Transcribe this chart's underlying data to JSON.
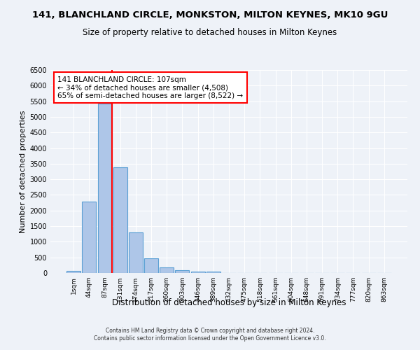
{
  "title": "141, BLANCHLAND CIRCLE, MONKSTON, MILTON KEYNES, MK10 9GU",
  "subtitle": "Size of property relative to detached houses in Milton Keynes",
  "xlabel": "Distribution of detached houses by size in Milton Keynes",
  "ylabel": "Number of detached properties",
  "categories": [
    "1sqm",
    "44sqm",
    "87sqm",
    "131sqm",
    "174sqm",
    "217sqm",
    "260sqm",
    "303sqm",
    "346sqm",
    "389sqm",
    "432sqm",
    "475sqm",
    "518sqm",
    "561sqm",
    "604sqm",
    "648sqm",
    "691sqm",
    "734sqm",
    "777sqm",
    "820sqm",
    "863sqm"
  ],
  "bar_heights": [
    75,
    2280,
    5430,
    3380,
    1310,
    480,
    190,
    90,
    55,
    45,
    0,
    0,
    0,
    0,
    0,
    0,
    0,
    0,
    0,
    0,
    0
  ],
  "bar_color": "#aec6e8",
  "bar_edge_color": "#5a9fd4",
  "vline_x_idx": 2,
  "vline_color": "red",
  "annotation_text": "141 BLANCHLAND CIRCLE: 107sqm\n← 34% of detached houses are smaller (4,508)\n65% of semi-detached houses are larger (8,522) →",
  "annotation_box_color": "white",
  "annotation_border_color": "red",
  "ylim": [
    0,
    6500
  ],
  "yticks": [
    0,
    500,
    1000,
    1500,
    2000,
    2500,
    3000,
    3500,
    4000,
    4500,
    5000,
    5500,
    6000,
    6500
  ],
  "footer_line1": "Contains HM Land Registry data © Crown copyright and database right 2024.",
  "footer_line2": "Contains public sector information licensed under the Open Government Licence v3.0.",
  "bg_color": "#eef2f8",
  "grid_color": "white",
  "title_fontsize": 9.5,
  "subtitle_fontsize": 8.5,
  "annotation_fontsize": 7.5,
  "ylabel_fontsize": 8,
  "xlabel_fontsize": 8.5
}
